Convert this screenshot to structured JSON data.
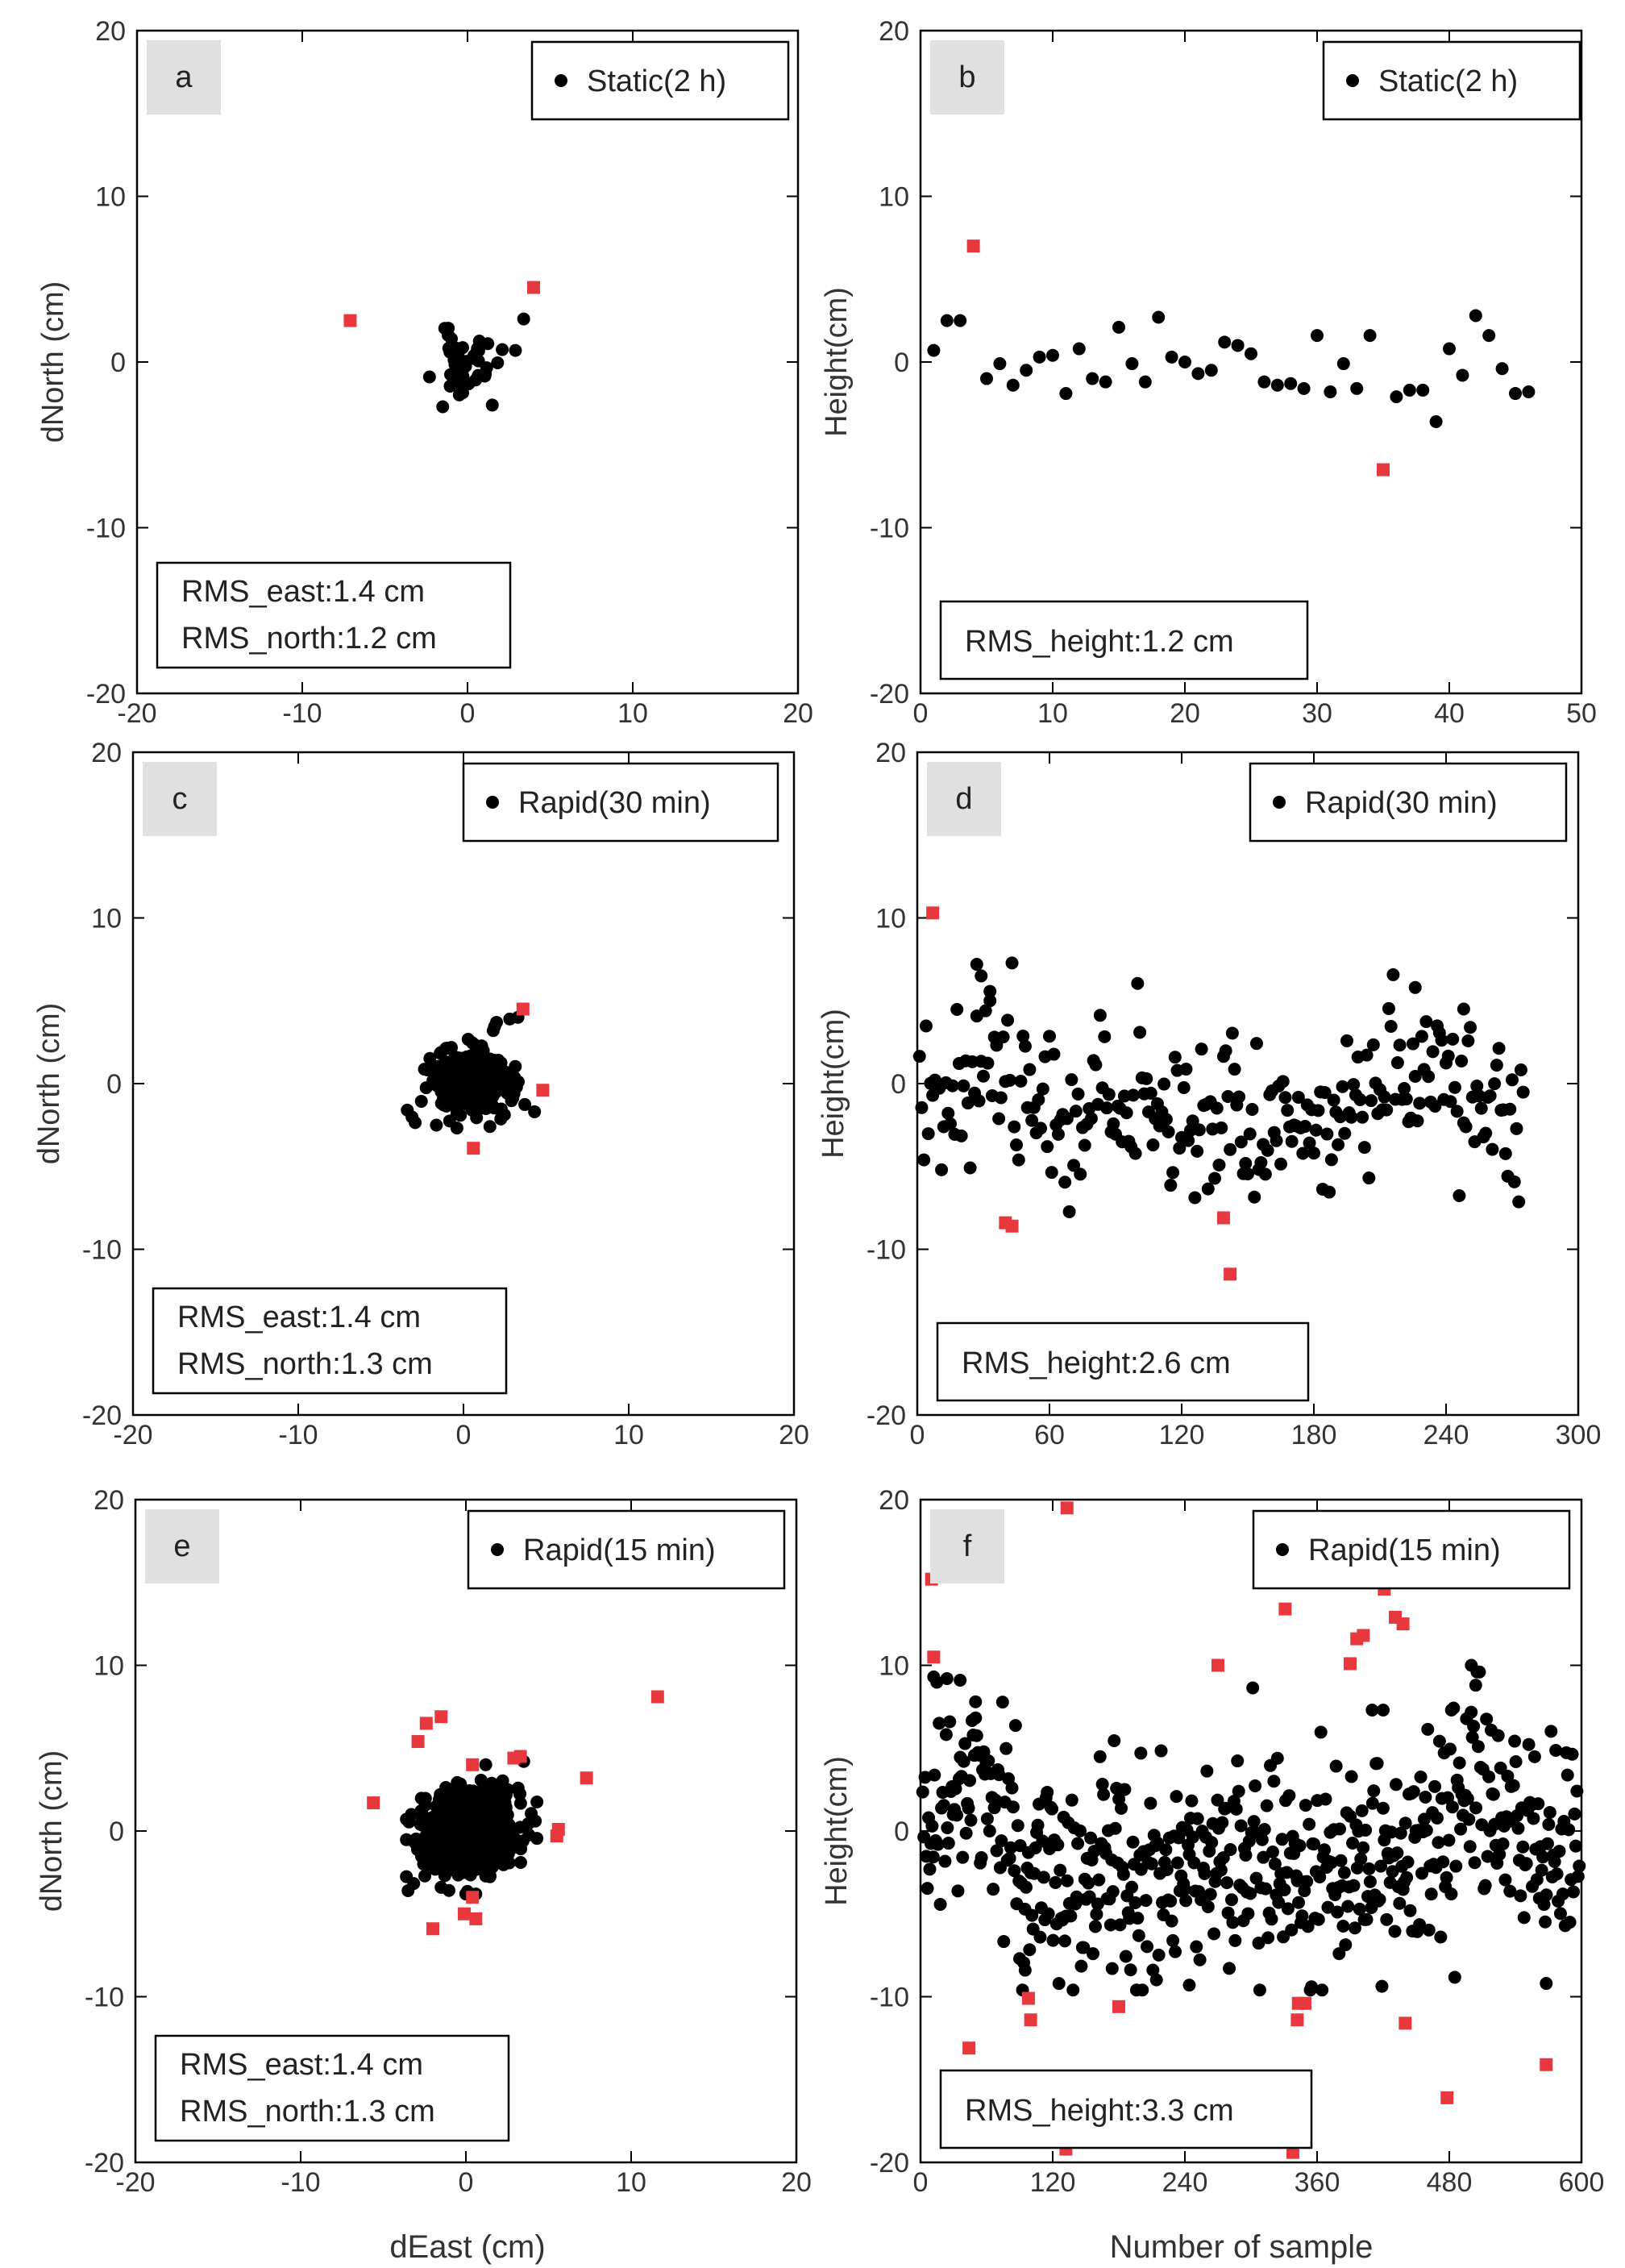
{
  "figure": {
    "xlabel_bottom_left": "dEast (cm)",
    "xlabel_bottom_right": "Number of sample"
  },
  "colors": {
    "point": "#000000",
    "outlier": "#e8383d",
    "panel_tag_bg": "#e0e0e0"
  },
  "chart_data": [
    {
      "id": "a",
      "type": "scatter",
      "tag": "a",
      "legend": "Static(2 h)",
      "xlim": [
        -20,
        20
      ],
      "ylim": [
        -20,
        20
      ],
      "xticks": [
        "-20",
        "-10",
        "0",
        "10",
        "20"
      ],
      "yticks": [
        "20",
        "10",
        "0",
        "-10",
        "-20"
      ],
      "xlabel": "",
      "ylabel": "dNorth (cm)",
      "stats": [
        "RMS_east:1.4 cm",
        "RMS_north:1.2 cm"
      ],
      "gen": {
        "kind": "cluster",
        "n": 45,
        "seed": 11,
        "cx": 0,
        "cy": 0,
        "sx": 0.9,
        "sy": 0.9
      },
      "extra": [
        [
          -1.5,
          -2.7
        ],
        [
          3.4,
          2.6
        ],
        [
          2.9,
          0.7
        ],
        [
          -2.3,
          -0.9
        ],
        [
          1.5,
          -2.6
        ]
      ],
      "outliers": [
        [
          -7.1,
          2.5
        ],
        [
          4.0,
          4.5
        ]
      ]
    },
    {
      "id": "b",
      "type": "scatter",
      "tag": "b",
      "legend": "Static(2 h)",
      "xlim": [
        0,
        50
      ],
      "ylim": [
        -20,
        20
      ],
      "xticks": [
        "0",
        "10",
        "20",
        "30",
        "40",
        "50"
      ],
      "yticks": [
        "20",
        "10",
        "0",
        "-10",
        "-20"
      ],
      "xlabel": "",
      "ylabel": "Height(cm)",
      "stats": [
        "RMS_height:1.2 cm"
      ],
      "points": [
        [
          1,
          0.7
        ],
        [
          2,
          2.5
        ],
        [
          3,
          2.5
        ],
        [
          5,
          -1.0
        ],
        [
          6,
          -0.1
        ],
        [
          7,
          -1.4
        ],
        [
          8,
          -0.5
        ],
        [
          9,
          0.3
        ],
        [
          10,
          0.4
        ],
        [
          11,
          -1.9
        ],
        [
          12,
          0.8
        ],
        [
          13,
          -1.0
        ],
        [
          14,
          -1.2
        ],
        [
          15,
          2.1
        ],
        [
          16,
          -0.1
        ],
        [
          17,
          -1.2
        ],
        [
          18,
          2.7
        ],
        [
          19,
          0.3
        ],
        [
          20,
          0.0
        ],
        [
          21,
          -0.7
        ],
        [
          22,
          -0.5
        ],
        [
          23,
          1.2
        ],
        [
          24,
          1.0
        ],
        [
          25,
          0.5
        ],
        [
          26,
          -1.2
        ],
        [
          27,
          -1.4
        ],
        [
          28,
          -1.3
        ],
        [
          29,
          -1.6
        ],
        [
          30,
          1.6
        ],
        [
          31,
          -1.8
        ],
        [
          32,
          -0.1
        ],
        [
          33,
          -1.6
        ],
        [
          34,
          1.6
        ],
        [
          36,
          -2.1
        ],
        [
          37,
          -1.7
        ],
        [
          38,
          -1.7
        ],
        [
          39,
          -3.6
        ],
        [
          40,
          0.8
        ],
        [
          41,
          -0.8
        ],
        [
          42,
          2.8
        ],
        [
          43,
          1.6
        ],
        [
          44,
          -0.4
        ],
        [
          45,
          -1.9
        ],
        [
          46,
          -1.8
        ]
      ],
      "outliers": [
        [
          4,
          7.0
        ],
        [
          35,
          -6.5
        ]
      ]
    },
    {
      "id": "c",
      "type": "scatter",
      "tag": "c",
      "legend": "Rapid(30 min)",
      "xlim": [
        -20,
        20
      ],
      "ylim": [
        -20,
        20
      ],
      "xticks": [
        "-20",
        "-10",
        "0",
        "10",
        "20"
      ],
      "yticks": [
        "20",
        "10",
        "0",
        "-10",
        "-20"
      ],
      "xlabel": "",
      "ylabel": "dNorth (cm)",
      "stats": [
        "RMS_east:1.4 cm",
        "RMS_north:1.3 cm"
      ],
      "gen": {
        "kind": "cluster",
        "n": 270,
        "seed": 23,
        "cx": 0.3,
        "cy": 0,
        "sx": 1.25,
        "sy": 1.05
      },
      "extra": [
        [
          2.0,
          3.7
        ],
        [
          2.8,
          3.9
        ],
        [
          3.3,
          4.0
        ],
        [
          1.8,
          3.2
        ],
        [
          -3.4,
          -1.6
        ]
      ],
      "outliers": [
        [
          3.6,
          4.5
        ],
        [
          4.8,
          -0.4
        ],
        [
          0.6,
          -3.9
        ]
      ]
    },
    {
      "id": "d",
      "type": "scatter",
      "tag": "d",
      "legend": "Rapid(30 min)",
      "xlim": [
        0,
        300
      ],
      "ylim": [
        -20,
        20
      ],
      "xticks": [
        "0",
        "60",
        "120",
        "180",
        "240",
        "300"
      ],
      "yticks": [
        "20",
        "10",
        "0",
        "-10",
        "-20"
      ],
      "xlabel": "",
      "ylabel": "Height(cm)",
      "stats": [
        "RMS_height:2.6 cm"
      ],
      "gen": {
        "kind": "series",
        "n": 275,
        "seed": 37,
        "x0": 1,
        "x1": 275,
        "trend": [
          [
            0,
            -1.2
          ],
          [
            30,
            1.5
          ],
          [
            60,
            -1.2
          ],
          [
            120,
            -1.5
          ],
          [
            180,
            -2.6
          ],
          [
            230,
            0.8
          ],
          [
            275,
            -1.8
          ]
        ],
        "s": 2.4
      },
      "extra": [
        [
          27,
          7.2
        ],
        [
          29,
          6.5
        ],
        [
          226,
          5.8
        ],
        [
          248,
          4.5
        ],
        [
          33,
          5.0
        ]
      ],
      "outliers": [
        [
          7,
          10.3
        ],
        [
          40,
          -8.4
        ],
        [
          43,
          -8.6
        ],
        [
          139,
          -8.1
        ],
        [
          142,
          -11.5
        ]
      ]
    },
    {
      "id": "e",
      "type": "scatter",
      "tag": "e",
      "legend": "Rapid(15 min)",
      "xlim": [
        -20,
        20
      ],
      "ylim": [
        -20,
        20
      ],
      "xticks": [
        "-20",
        "-10",
        "0",
        "10",
        "20"
      ],
      "yticks": [
        "20",
        "10",
        "0",
        "-10",
        "-20"
      ],
      "xlabel": "dEast (cm)",
      "ylabel": "dNorth (cm)",
      "stats": [
        "RMS_east:1.4 cm",
        "RMS_north:1.3 cm"
      ],
      "gen": {
        "kind": "cluster",
        "n": 600,
        "seed": 53,
        "cx": 0.2,
        "cy": 0,
        "sx": 1.35,
        "sy": 1.25
      },
      "extra": [
        [
          -3.5,
          -3.6
        ],
        [
          -1.5,
          -3.4
        ],
        [
          3.5,
          4.2
        ],
        [
          4.2,
          0.6
        ],
        [
          -3.3,
          1.0
        ]
      ],
      "outliers": [
        [
          -5.6,
          1.7
        ],
        [
          -2.9,
          5.4
        ],
        [
          -2.4,
          6.5
        ],
        [
          -1.5,
          6.9
        ],
        [
          0.4,
          4.0
        ],
        [
          2.9,
          4.4
        ],
        [
          3.3,
          4.5
        ],
        [
          5.5,
          -0.3
        ],
        [
          5.6,
          0.1
        ],
        [
          7.3,
          3.2
        ],
        [
          11.6,
          8.1
        ],
        [
          -2.0,
          -5.9
        ],
        [
          -0.1,
          -5.0
        ],
        [
          0.4,
          -4.0
        ],
        [
          0.6,
          -5.3
        ]
      ]
    },
    {
      "id": "f",
      "type": "scatter",
      "tag": "f",
      "legend": "Rapid(15 min)",
      "xlim": [
        0,
        600
      ],
      "ylim": [
        -20,
        20
      ],
      "xticks": [
        "0",
        "120",
        "240",
        "360",
        "480",
        "600"
      ],
      "yticks": [
        "20",
        "10",
        "0",
        "-10",
        "-20"
      ],
      "xlabel": "Number of sample",
      "ylabel": "Height(cm)",
      "stats": [
        "RMS_height:3.3 cm"
      ],
      "gen": {
        "kind": "series",
        "n": 560,
        "seed": 71,
        "x0": 2,
        "x1": 598,
        "trend": [
          [
            0,
            1.0
          ],
          [
            60,
            2.5
          ],
          [
            100,
            -3.0
          ],
          [
            240,
            -2.6
          ],
          [
            300,
            -1.0
          ],
          [
            420,
            -2.0
          ],
          [
            500,
            1.5
          ],
          [
            600,
            -1.0
          ]
        ],
        "s": 3.3
      },
      "extra": [
        [
          12,
          9.3
        ],
        [
          24,
          9.2
        ],
        [
          36,
          9.1
        ],
        [
          50,
          7.8
        ],
        [
          200,
          4.7
        ],
        [
          410,
          7.3
        ],
        [
          482,
          7.3
        ],
        [
          500,
          10.0
        ],
        [
          504,
          8.8
        ],
        [
          90,
          -7.7
        ],
        [
          95,
          -8.4
        ],
        [
          174,
          -8.3
        ],
        [
          244,
          -9.3
        ],
        [
          380,
          -7.4
        ],
        [
          420,
          7.3
        ],
        [
          568,
          -9.2
        ]
      ],
      "outliers": [
        [
          10,
          15.2
        ],
        [
          12,
          10.5
        ],
        [
          44,
          -13.1
        ],
        [
          98,
          -10.1
        ],
        [
          100,
          -11.4
        ],
        [
          133,
          19.5
        ],
        [
          132,
          -19.2
        ],
        [
          180,
          -10.6
        ],
        [
          270,
          10.0
        ],
        [
          331,
          13.4
        ],
        [
          338,
          -19.4
        ],
        [
          342,
          -11.4
        ],
        [
          343,
          -10.4
        ],
        [
          349,
          -10.4
        ],
        [
          390,
          10.1
        ],
        [
          396,
          11.6
        ],
        [
          402,
          11.8
        ],
        [
          421,
          14.6
        ],
        [
          431,
          12.9
        ],
        [
          438,
          12.5
        ],
        [
          440,
          -11.6
        ],
        [
          478,
          -16.1
        ],
        [
          568,
          -14.1
        ]
      ]
    }
  ]
}
